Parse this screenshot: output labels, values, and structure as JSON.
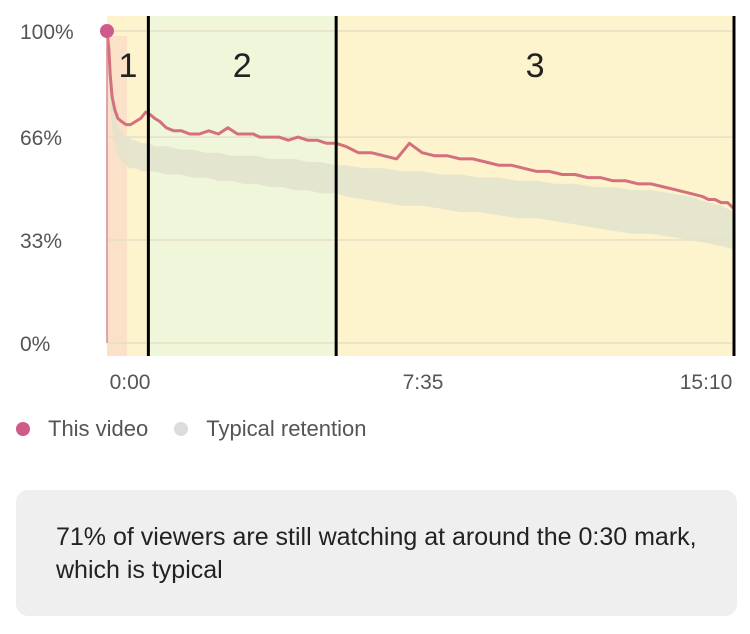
{
  "chart_data": {
    "type": "area",
    "y_ticks": [
      "100%",
      "66%",
      "33%",
      "0%"
    ],
    "x_ticks": [
      "0:00",
      "7:35",
      "15:10"
    ],
    "ylim": [
      0,
      100
    ],
    "xlim_seconds": [
      -75,
      910
    ],
    "zones": [
      {
        "label": "1",
        "start": -75,
        "end": -10,
        "color": "#fdf3cc"
      },
      {
        "label": "2",
        "start": -10,
        "end": 285,
        "color": "#eff6da"
      },
      {
        "label": "3",
        "start": 285,
        "end": 910,
        "color": "#fdf3cc"
      }
    ],
    "zone_boundaries": [
      -10,
      285,
      910
    ],
    "series": [
      {
        "name": "This video",
        "color": "#d4707e",
        "x": [
          -75,
          -72,
          -70,
          -67,
          -63,
          -58,
          -52,
          -45,
          -38,
          -30,
          -22,
          -14,
          -6,
          0,
          8,
          18,
          30,
          42,
          55,
          70,
          85,
          100,
          115,
          130,
          145,
          155,
          165,
          180,
          195,
          210,
          225,
          240,
          255,
          270,
          285,
          300,
          320,
          340,
          360,
          380,
          400,
          420,
          440,
          460,
          480,
          500,
          520,
          540,
          560,
          580,
          600,
          620,
          640,
          660,
          680,
          700,
          720,
          740,
          760,
          780,
          800,
          820,
          840,
          860,
          870,
          880,
          890,
          900,
          910
        ],
        "y": [
          100,
          94,
          86,
          79,
          75,
          72,
          71,
          70,
          70,
          71,
          72,
          74,
          73,
          72,
          71,
          69,
          68,
          68,
          67,
          67,
          68,
          67,
          69,
          67,
          67,
          67,
          66,
          66,
          66,
          65,
          66,
          65,
          65,
          64,
          64,
          63,
          61,
          61,
          60,
          59,
          64,
          61,
          60,
          60,
          59,
          59,
          58,
          57,
          57,
          56,
          55,
          55,
          54,
          54,
          53,
          53,
          52,
          52,
          51,
          51,
          50,
          49,
          48,
          47,
          46,
          46,
          45,
          45,
          43
        ]
      }
    ],
    "typical_band": {
      "name": "Typical retention",
      "color": "#e2e2cc",
      "x": [
        -75,
        -70,
        -65,
        -60,
        -55,
        -50,
        -45,
        -40,
        -35,
        -30,
        -20,
        -10,
        0,
        20,
        40,
        60,
        80,
        100,
        120,
        140,
        160,
        180,
        200,
        220,
        240,
        260,
        285,
        300,
        330,
        360,
        390,
        420,
        450,
        480,
        510,
        540,
        570,
        600,
        630,
        660,
        690,
        720,
        750,
        780,
        810,
        840,
        870,
        890,
        910
      ],
      "upper": [
        95,
        84,
        75,
        71,
        68,
        67,
        66,
        66,
        65,
        65,
        64,
        64,
        63,
        63,
        62,
        62,
        61,
        61,
        60,
        60,
        60,
        59,
        59,
        59,
        58,
        58,
        57,
        57,
        56,
        56,
        55,
        55,
        54,
        54,
        53,
        53,
        52,
        52,
        51,
        51,
        50,
        50,
        49,
        49,
        48,
        47,
        45,
        44,
        42
      ],
      "lower": [
        90,
        76,
        66,
        62,
        59,
        58,
        57,
        56,
        56,
        56,
        55,
        55,
        55,
        54,
        54,
        53,
        53,
        52,
        52,
        51,
        51,
        50,
        50,
        49,
        49,
        48,
        48,
        47,
        46,
        45,
        44,
        44,
        43,
        42,
        42,
        41,
        40,
        40,
        39,
        38,
        37,
        36,
        35,
        35,
        34,
        33,
        32,
        31,
        30
      ]
    }
  },
  "legend": [
    {
      "label": "This video",
      "color": "#cf5b8a"
    },
    {
      "label": "Typical retention",
      "color": "#dcdcdc"
    }
  ],
  "info": {
    "text": "71% of viewers are still watching at around the 0:30 mark, which is typical"
  }
}
